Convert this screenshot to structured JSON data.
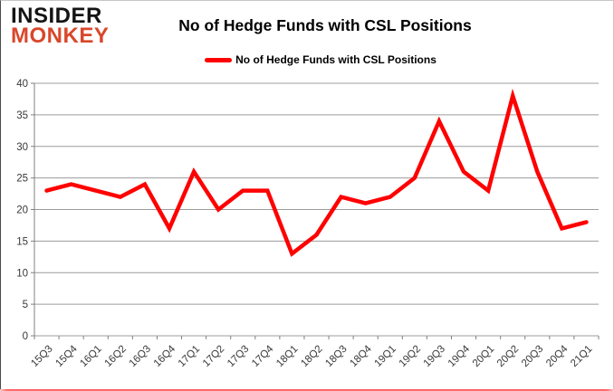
{
  "branding": {
    "line1": "INSIDER",
    "line2": "MONKEY",
    "line2_color": "#d9472b"
  },
  "header": {
    "title": "No of Hedge Funds with CSL Positions"
  },
  "chart_data": {
    "type": "line",
    "title": "No of Hedge Funds with CSL Positions",
    "categories": [
      "15Q3",
      "15Q4",
      "16Q1",
      "16Q2",
      "16Q3",
      "16Q4",
      "17Q1",
      "17Q2",
      "17Q3",
      "17Q4",
      "18Q1",
      "18Q2",
      "18Q3",
      "18Q4",
      "19Q1",
      "19Q2",
      "19Q3",
      "19Q4",
      "20Q1",
      "20Q2",
      "20Q3",
      "20Q4",
      "21Q1"
    ],
    "series": [
      {
        "name": "No of Hedge Funds with CSL Positions",
        "color": "#FF0000",
        "values": [
          23,
          24,
          23,
          22,
          24,
          17,
          26,
          20,
          23,
          23,
          13,
          16,
          22,
          21,
          22,
          25,
          34,
          26,
          23,
          38,
          26,
          17,
          18
        ]
      }
    ],
    "xlabel": "",
    "ylabel": "",
    "ylim": [
      0,
      40
    ],
    "yticks": [
      0,
      5,
      10,
      15,
      20,
      25,
      30,
      35,
      40
    ],
    "grid": true,
    "legend_position": "top",
    "axis_color": "#808080",
    "gridline_color": "#9c9c9c",
    "tick_label_color": "#383838"
  }
}
